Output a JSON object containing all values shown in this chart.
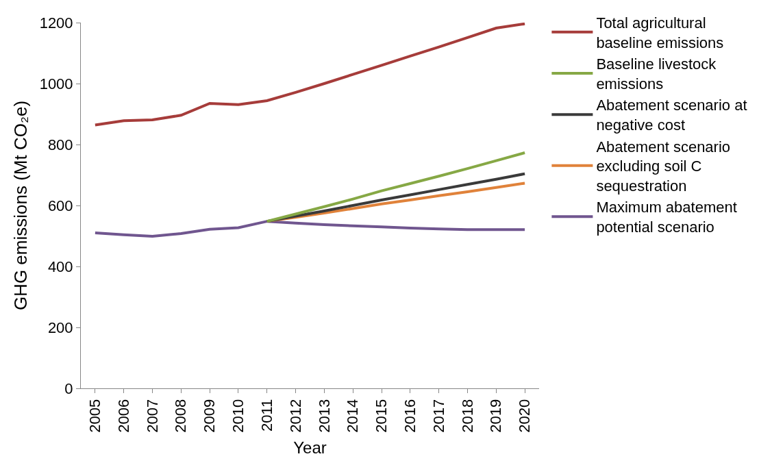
{
  "chart_data": {
    "type": "line",
    "xlabel": "Year",
    "ylabel": "GHG emissions (Mt CO₂e)",
    "categories": [
      "2005",
      "2006",
      "2007",
      "2008",
      "2009",
      "2010",
      "2011",
      "2012",
      "2013",
      "2014",
      "2015",
      "2016",
      "2017",
      "2018",
      "2019",
      "2020"
    ],
    "ylim": [
      0,
      1200
    ],
    "yticks": [
      0,
      200,
      400,
      600,
      800,
      1000,
      1200
    ],
    "grid": false,
    "legend": "right",
    "marker": "none",
    "line_style": "solid",
    "series": [
      {
        "name": "Total agricultural baseline emissions",
        "color": "#a63c3a",
        "values": [
          864,
          878,
          881,
          896,
          935,
          931,
          944,
          971,
          1000,
          1030,
          1060,
          1090,
          1120,
          1151,
          1182,
          1196
        ]
      },
      {
        "name": "Baseline livestock emissions",
        "color": "#86a845",
        "values": [
          null,
          null,
          null,
          null,
          null,
          null,
          548,
          572,
          596,
          621,
          648,
          672,
          696,
          721,
          747,
          773
        ]
      },
      {
        "name": "Abatement scenario at negative cost",
        "color": "#3a3a3a",
        "values": [
          null,
          null,
          null,
          null,
          null,
          null,
          548,
          565,
          582,
          600,
          618,
          635,
          652,
          669,
          686,
          704
        ]
      },
      {
        "name": "Abatement scenario excluding soil C sequestration",
        "color": "#e0823a",
        "values": [
          null,
          null,
          null,
          null,
          null,
          null,
          548,
          561,
          575,
          590,
          605,
          618,
          632,
          645,
          659,
          673
        ]
      },
      {
        "name": "Maximum abatement potential scenario",
        "color": "#70568f",
        "values": [
          510,
          504,
          499,
          508,
          522,
          527,
          548,
          542,
          537,
          533,
          530,
          526,
          523,
          521,
          521,
          521
        ]
      }
    ]
  }
}
